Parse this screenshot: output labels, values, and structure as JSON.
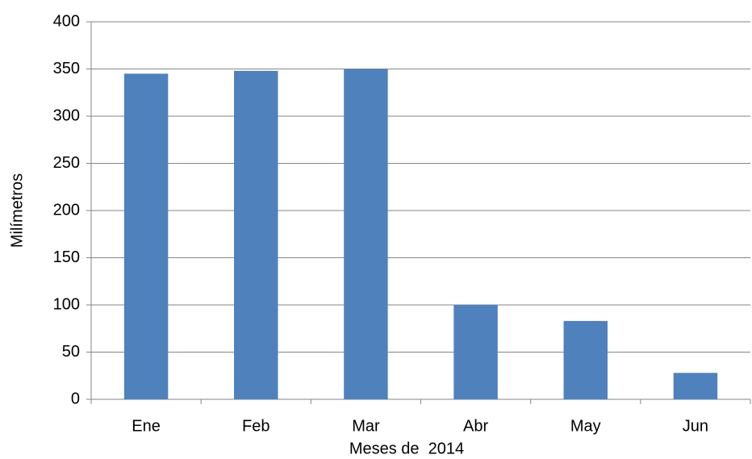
{
  "chart_data": {
    "type": "bar",
    "x_label": "Meses de  2014",
    "y_label": "Milímetros",
    "categories": [
      "Ene",
      "Feb",
      "Mar",
      "Abr",
      "May",
      "Jun"
    ],
    "values": [
      345,
      348,
      350,
      100,
      83,
      28
    ],
    "color": "#4f81bd",
    "ylim": [
      0,
      400
    ],
    "yticks": [
      0,
      50,
      100,
      150,
      200,
      250,
      300,
      350,
      400
    ],
    "grid": true
  }
}
